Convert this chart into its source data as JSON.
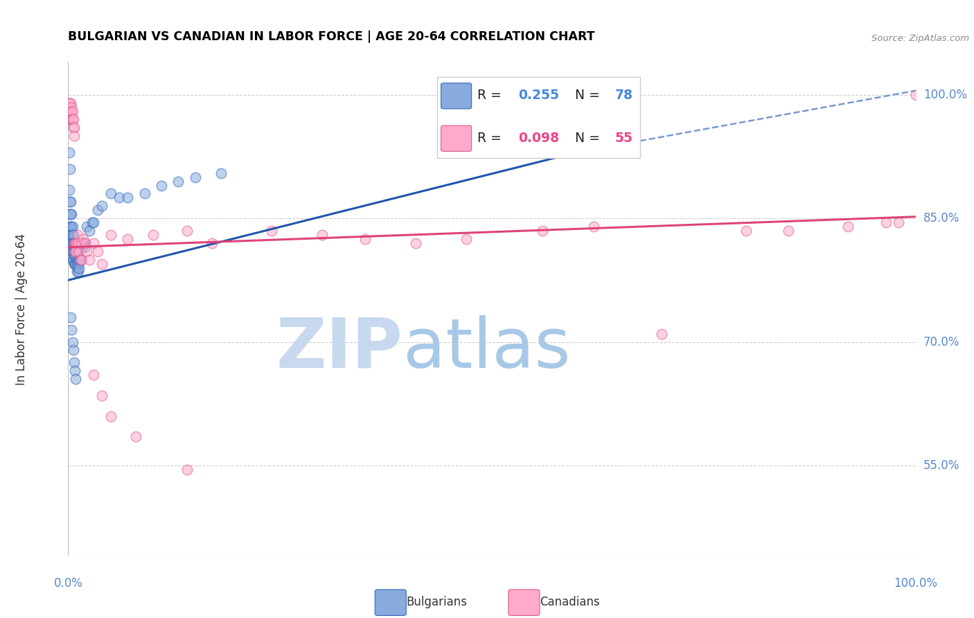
{
  "title": "BULGARIAN VS CANADIAN IN LABOR FORCE | AGE 20-64 CORRELATION CHART",
  "source": "Source: ZipAtlas.com",
  "ylabel": "In Labor Force | Age 20-64",
  "yticks": [
    0.55,
    0.7,
    0.85,
    1.0
  ],
  "ytick_labels": [
    "55.0%",
    "70.0%",
    "85.0%",
    "100.0%"
  ],
  "xmin": 0.0,
  "xmax": 1.0,
  "ymin": 0.44,
  "ymax": 1.04,
  "blue_color": "#88AADD",
  "blue_edge_color": "#3366BB",
  "pink_color": "#FFAACC",
  "pink_edge_color": "#DD5588",
  "blue_line_color": "#2255AA",
  "pink_line_color": "#DD4477",
  "blue_trend": [
    0.0,
    0.775,
    0.6,
    0.93
  ],
  "blue_dashed": [
    0.6,
    0.93,
    1.0,
    1.005
  ],
  "pink_trend": [
    0.0,
    0.815,
    1.0,
    0.852
  ],
  "blue_scatter_x": [
    0.001,
    0.001,
    0.001,
    0.002,
    0.002,
    0.002,
    0.002,
    0.002,
    0.003,
    0.003,
    0.003,
    0.003,
    0.004,
    0.004,
    0.004,
    0.004,
    0.004,
    0.005,
    0.005,
    0.005,
    0.005,
    0.005,
    0.006,
    0.006,
    0.006,
    0.006,
    0.007,
    0.007,
    0.007,
    0.007,
    0.008,
    0.008,
    0.008,
    0.008,
    0.009,
    0.009,
    0.009,
    0.01,
    0.01,
    0.01,
    0.01,
    0.011,
    0.011,
    0.011,
    0.012,
    0.012,
    0.012,
    0.013,
    0.013,
    0.014,
    0.015,
    0.015,
    0.016,
    0.017,
    0.018,
    0.019,
    0.02,
    0.022,
    0.025,
    0.028,
    0.03,
    0.035,
    0.04,
    0.05,
    0.06,
    0.07,
    0.09,
    0.11,
    0.13,
    0.15,
    0.18,
    0.003,
    0.004,
    0.005,
    0.006,
    0.007,
    0.008,
    0.009
  ],
  "blue_scatter_y": [
    0.97,
    0.93,
    0.885,
    0.91,
    0.87,
    0.855,
    0.84,
    0.83,
    0.87,
    0.855,
    0.84,
    0.83,
    0.855,
    0.84,
    0.83,
    0.82,
    0.81,
    0.84,
    0.83,
    0.82,
    0.81,
    0.8,
    0.83,
    0.82,
    0.81,
    0.8,
    0.82,
    0.815,
    0.805,
    0.795,
    0.815,
    0.81,
    0.805,
    0.795,
    0.81,
    0.805,
    0.795,
    0.81,
    0.8,
    0.795,
    0.785,
    0.81,
    0.8,
    0.79,
    0.8,
    0.795,
    0.785,
    0.8,
    0.79,
    0.8,
    0.82,
    0.8,
    0.815,
    0.82,
    0.82,
    0.815,
    0.82,
    0.84,
    0.835,
    0.845,
    0.845,
    0.86,
    0.865,
    0.88,
    0.875,
    0.875,
    0.88,
    0.89,
    0.895,
    0.9,
    0.905,
    0.73,
    0.715,
    0.7,
    0.69,
    0.675,
    0.665,
    0.655
  ],
  "pink_scatter_x": [
    0.001,
    0.002,
    0.003,
    0.003,
    0.004,
    0.004,
    0.004,
    0.005,
    0.005,
    0.006,
    0.006,
    0.007,
    0.007,
    0.008,
    0.008,
    0.009,
    0.009,
    0.01,
    0.011,
    0.012,
    0.013,
    0.014,
    0.015,
    0.016,
    0.018,
    0.02,
    0.022,
    0.025,
    0.03,
    0.035,
    0.04,
    0.05,
    0.07,
    0.1,
    0.14,
    0.17,
    0.24,
    0.3,
    0.35,
    0.41,
    0.47,
    0.56,
    0.62,
    0.7,
    0.8,
    0.85,
    0.92,
    0.965,
    0.98,
    1.0,
    0.03,
    0.04,
    0.05,
    0.08,
    0.14
  ],
  "pink_scatter_y": [
    0.99,
    0.99,
    0.99,
    0.98,
    0.985,
    0.98,
    0.97,
    0.98,
    0.97,
    0.97,
    0.96,
    0.96,
    0.95,
    0.82,
    0.81,
    0.82,
    0.81,
    0.82,
    0.83,
    0.82,
    0.81,
    0.8,
    0.82,
    0.8,
    0.825,
    0.82,
    0.81,
    0.8,
    0.82,
    0.81,
    0.795,
    0.83,
    0.825,
    0.83,
    0.835,
    0.82,
    0.835,
    0.83,
    0.825,
    0.82,
    0.825,
    0.835,
    0.84,
    0.71,
    0.835,
    0.835,
    0.84,
    0.845,
    0.845,
    1.0,
    0.66,
    0.635,
    0.61,
    0.585,
    0.545
  ],
  "legend_R_blue": "0.255",
  "legend_N_blue": "78",
  "legend_R_pink": "0.098",
  "legend_N_pink": "55",
  "watermark_zip_color": "#C8D8EE",
  "watermark_atlas_color": "#A8C8E8"
}
